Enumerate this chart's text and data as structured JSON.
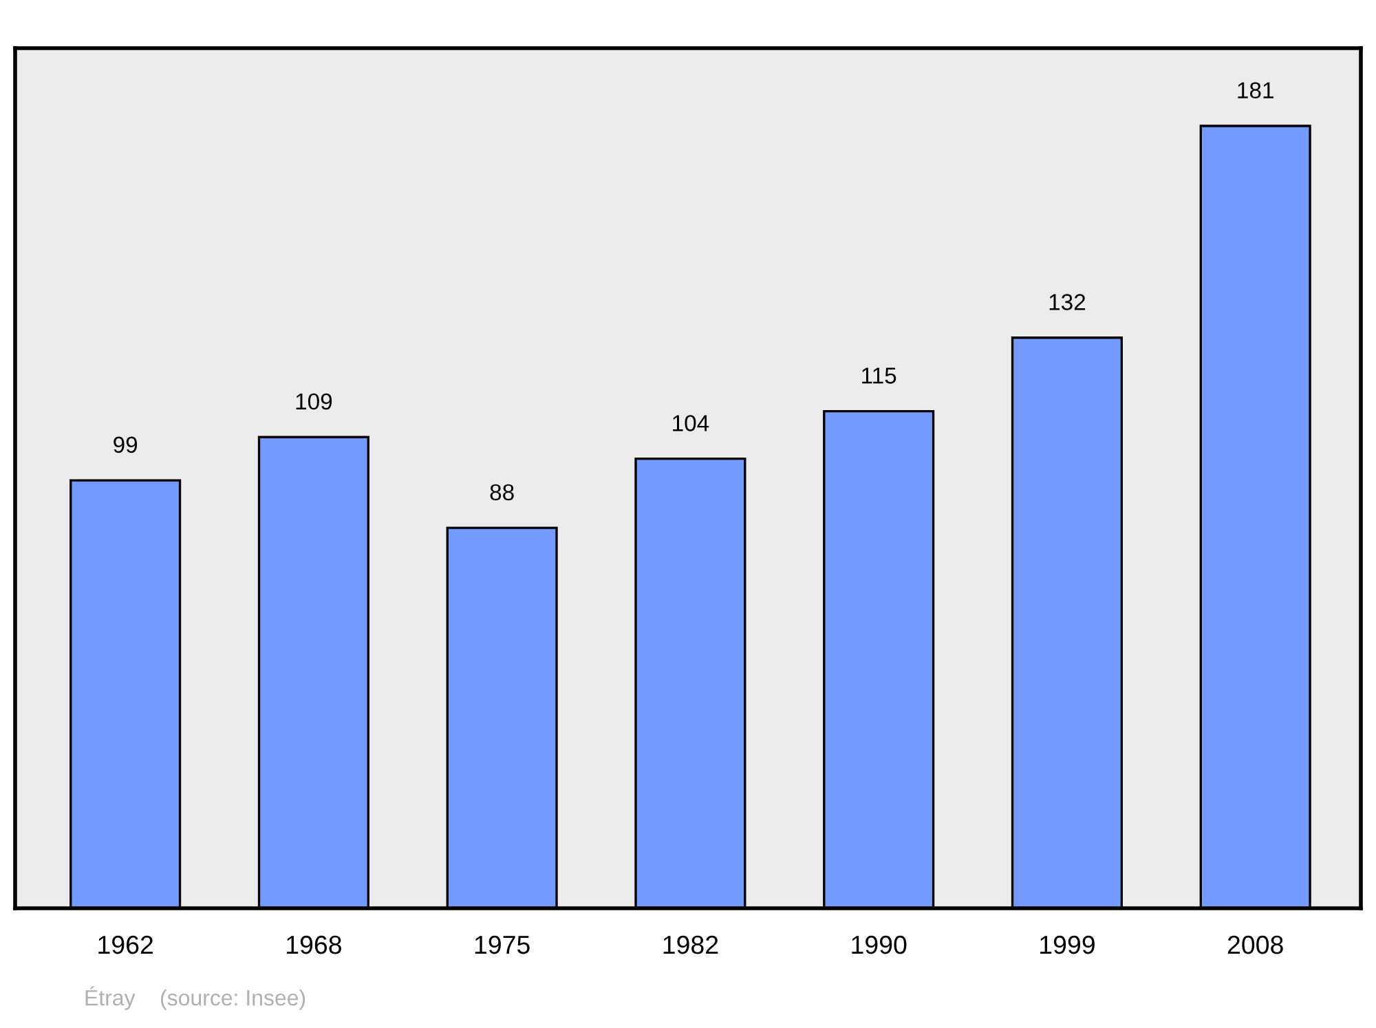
{
  "chart_data": {
    "type": "bar",
    "categories": [
      "1962",
      "1968",
      "1975",
      "1982",
      "1990",
      "1999",
      "2008"
    ],
    "values": [
      99,
      109,
      88,
      104,
      115,
      132,
      181
    ],
    "color": "#7499ff",
    "ylim": [
      0,
      199
    ],
    "data_labels": true,
    "tick_labels": "x",
    "grid": false,
    "annotations": [
      "Étray    (source: Insee)"
    ]
  }
}
